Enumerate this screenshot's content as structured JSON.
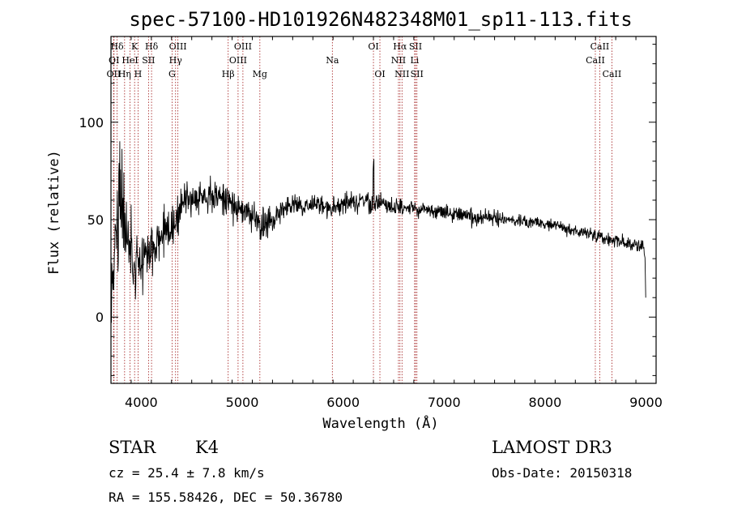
{
  "chart_data": {
    "type": "line",
    "title": "spec-57100-HD101926N482348M01_sp11-113.fits",
    "xlabel": "Wavelength (Å)",
    "ylabel": "Flux (relative)",
    "xlim": [
      3700,
      9100
    ],
    "ylim": [
      -34,
      144
    ],
    "xticks": [
      4000,
      5000,
      6000,
      7000,
      8000,
      9000
    ],
    "yticks": [
      0,
      50,
      100
    ],
    "continuum": [
      [
        3700,
        20
      ],
      [
        3750,
        35
      ],
      [
        3800,
        55
      ],
      [
        3850,
        40
      ],
      [
        3900,
        30
      ],
      [
        3950,
        25
      ],
      [
        4000,
        30
      ],
      [
        4100,
        34
      ],
      [
        4200,
        40
      ],
      [
        4300,
        46
      ],
      [
        4400,
        57
      ],
      [
        4500,
        62
      ],
      [
        4600,
        63
      ],
      [
        4700,
        62
      ],
      [
        4800,
        62
      ],
      [
        4900,
        58
      ],
      [
        5000,
        56
      ],
      [
        5100,
        52
      ],
      [
        5200,
        46
      ],
      [
        5300,
        50
      ],
      [
        5400,
        55
      ],
      [
        5500,
        58
      ],
      [
        5600,
        57
      ],
      [
        5700,
        58
      ],
      [
        5800,
        57
      ],
      [
        5900,
        56
      ],
      [
        6000,
        58
      ],
      [
        6100,
        59
      ],
      [
        6200,
        60
      ],
      [
        6300,
        58
      ],
      [
        6400,
        59
      ],
      [
        6500,
        57
      ],
      [
        6600,
        56
      ],
      [
        6700,
        56
      ],
      [
        6800,
        55
      ],
      [
        6900,
        54
      ],
      [
        7000,
        53
      ],
      [
        7200,
        52
      ],
      [
        7400,
        51
      ],
      [
        7600,
        50
      ],
      [
        7800,
        49
      ],
      [
        8000,
        48
      ],
      [
        8200,
        46
      ],
      [
        8400,
        43
      ],
      [
        8600,
        40
      ],
      [
        8800,
        38
      ],
      [
        8950,
        36
      ],
      [
        8985,
        35
      ],
      [
        9000,
        10
      ]
    ],
    "spectral_lines": [
      {
        "label": "Hδ",
        "wavelength": 3760,
        "row": 0
      },
      {
        "label": "OI",
        "wavelength": 3730,
        "row": 1
      },
      {
        "label": "OII",
        "wavelength": 3727,
        "row": 2
      },
      {
        "label": "K",
        "wavelength": 3934,
        "row": 0
      },
      {
        "label": "HeI",
        "wavelength": 3889,
        "row": 1
      },
      {
        "label": "Hη",
        "wavelength": 3835,
        "row": 2
      },
      {
        "label": "Hδ",
        "wavelength": 4102,
        "row": 0
      },
      {
        "label": "SII",
        "wavelength": 4072,
        "row": 1
      },
      {
        "label": "H",
        "wavelength": 3968,
        "row": 2
      },
      {
        "label": "OIII",
        "wavelength": 4363,
        "row": 0
      },
      {
        "label": "Hγ",
        "wavelength": 4340,
        "row": 1
      },
      {
        "label": "G",
        "wavelength": 4305,
        "row": 2
      },
      {
        "label": "OIII",
        "wavelength": 5007,
        "row": 0
      },
      {
        "label": "OIII",
        "wavelength": 4959,
        "row": 1
      },
      {
        "label": "Hβ",
        "wavelength": 4861,
        "row": 2
      },
      {
        "label": "Mg",
        "wavelength": 5175,
        "row": 2
      },
      {
        "label": "Na",
        "wavelength": 5893,
        "row": 1
      },
      {
        "label": "OI",
        "wavelength": 6300,
        "row": 0
      },
      {
        "label": "OI",
        "wavelength": 6364,
        "row": 2
      },
      {
        "label": "Hα",
        "wavelength": 6563,
        "row": 0
      },
      {
        "label": "NII",
        "wavelength": 6548,
        "row": 1
      },
      {
        "label": "NII",
        "wavelength": 6583,
        "row": 2
      },
      {
        "label": "SII",
        "wavelength": 6717,
        "row": 0
      },
      {
        "label": "Li",
        "wavelength": 6708,
        "row": 1
      },
      {
        "label": "SII",
        "wavelength": 6731,
        "row": 2
      },
      {
        "label": "CaII",
        "wavelength": 8542,
        "row": 0
      },
      {
        "label": "CaII",
        "wavelength": 8498,
        "row": 1
      },
      {
        "label": "CaII",
        "wavelength": 8662,
        "row": 2
      }
    ]
  },
  "footer": {
    "object_class": "STAR",
    "subclass": "K4",
    "cz": "cz = 25.4 ± 7.8 km/s",
    "coords": "RA = 155.58426, DEC =  50.36780",
    "survey": "LAMOST DR3",
    "obs_date": "Obs-Date: 20150318"
  },
  "colors": {
    "axis": "#000000",
    "spectrum": "#000000",
    "line_markers": "#a01818"
  }
}
